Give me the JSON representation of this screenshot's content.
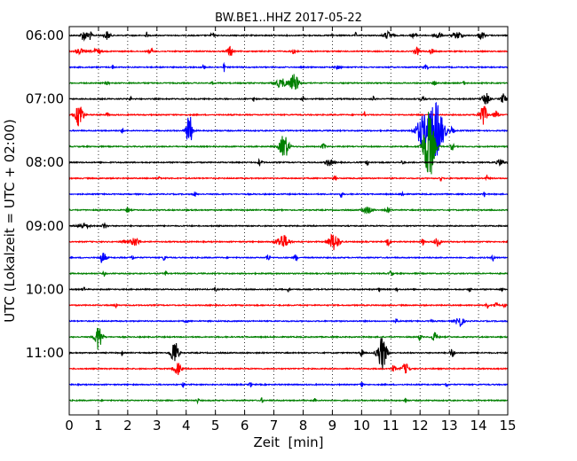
{
  "chart_data": {
    "type": "line",
    "title": "BW.BE1..HHZ 2017-05-22",
    "xlabel": "Zeit  [min]",
    "ylabel": "UTC (Lokalzeit = UTC + 02:00)",
    "xlim": [
      0,
      15
    ],
    "x_ticks": [
      "0",
      "1",
      "2",
      "3",
      "4",
      "5",
      "6",
      "7",
      "8",
      "9",
      "10",
      "11",
      "12",
      "13",
      "14",
      "15"
    ],
    "y_ticks": [
      "06:00",
      "07:00",
      "08:00",
      "09:00",
      "10:00",
      "11:00"
    ],
    "row_interval_min": 15,
    "grid": "vertical-dotted",
    "colors": [
      "#000000",
      "#ff0000",
      "#0000ff",
      "#008000"
    ],
    "rows": [
      {
        "start": "06:00",
        "bursts": [
          [
            0.5,
            6,
            0.1
          ],
          [
            0.7,
            5,
            0.08
          ],
          [
            1.3,
            5,
            0.1
          ],
          [
            2.65,
            4,
            0.03
          ],
          [
            4.9,
            3,
            0.06
          ],
          [
            9.0,
            3,
            0.03
          ],
          [
            9.8,
            3,
            0.03
          ],
          [
            10.9,
            4,
            0.15
          ],
          [
            11.8,
            3,
            0.08
          ],
          [
            12.6,
            4,
            0.12
          ],
          [
            13.3,
            4,
            0.15
          ],
          [
            14.1,
            4,
            0.1
          ]
        ]
      },
      {
        "start": "06:15",
        "bursts": [
          [
            0.35,
            3,
            0.15
          ],
          [
            0.95,
            3,
            0.15
          ],
          [
            2.8,
            3,
            0.08
          ],
          [
            5.5,
            6,
            0.1
          ],
          [
            7.7,
            3,
            0.1
          ],
          [
            11.9,
            4,
            0.1
          ],
          [
            12.4,
            3,
            0.08
          ]
        ]
      },
      {
        "start": "06:30",
        "bursts": [
          [
            1.5,
            2,
            0.05
          ],
          [
            4.6,
            6,
            0.03
          ],
          [
            5.3,
            5,
            0.03
          ],
          [
            9.2,
            2,
            0.1
          ],
          [
            12.2,
            3,
            0.08
          ]
        ]
      },
      {
        "start": "06:45",
        "bursts": [
          [
            1.3,
            2,
            0.06
          ],
          [
            4.9,
            4,
            0.03
          ],
          [
            7.25,
            5,
            0.2
          ],
          [
            7.7,
            10,
            0.15
          ],
          [
            12.5,
            3,
            0.06
          ],
          [
            13.5,
            2,
            0.04
          ]
        ]
      },
      {
        "start": "07:00",
        "bursts": [
          [
            2.1,
            2,
            0.04
          ],
          [
            6.3,
            3,
            0.03
          ],
          [
            8.0,
            3,
            0.03
          ],
          [
            10.4,
            3,
            0.05
          ],
          [
            12.1,
            3,
            0.08
          ],
          [
            14.25,
            7,
            0.12
          ],
          [
            14.85,
            6,
            0.08
          ]
        ]
      },
      {
        "start": "07:15",
        "bursts": [
          [
            0.35,
            15,
            0.12
          ],
          [
            1.3,
            3,
            0.04
          ],
          [
            10.1,
            4,
            0.03
          ],
          [
            14.15,
            13,
            0.12
          ],
          [
            14.6,
            5,
            0.08
          ]
        ]
      },
      {
        "start": "07:30",
        "bursts": [
          [
            1.8,
            3,
            0.05
          ],
          [
            4.1,
            20,
            0.1
          ],
          [
            12.1,
            18,
            0.22
          ],
          [
            12.55,
            32,
            0.25
          ],
          [
            13.1,
            4,
            0.06
          ]
        ]
      },
      {
        "start": "07:45",
        "bursts": [
          [
            7.35,
            14,
            0.15
          ],
          [
            8.7,
            3,
            0.08
          ],
          [
            12.3,
            40,
            0.18
          ],
          [
            13.1,
            4,
            0.06
          ]
        ]
      },
      {
        "start": "08:00",
        "bursts": [
          [
            6.5,
            4,
            0.04
          ],
          [
            6.6,
            3,
            0.03
          ],
          [
            8.9,
            4,
            0.12
          ],
          [
            10.2,
            3,
            0.05
          ],
          [
            11.4,
            3,
            0.04
          ],
          [
            14.75,
            4,
            0.12
          ]
        ]
      },
      {
        "start": "08:15",
        "bursts": [
          [
            3.1,
            3,
            0.04
          ],
          [
            9.1,
            3,
            0.04
          ],
          [
            12.7,
            3,
            0.04
          ],
          [
            14.3,
            4,
            0.04
          ]
        ]
      },
      {
        "start": "08:30",
        "bursts": [
          [
            4.3,
            3,
            0.05
          ],
          [
            9.3,
            4,
            0.04
          ],
          [
            11.4,
            3,
            0.05
          ],
          [
            14.2,
            3,
            0.04
          ]
        ]
      },
      {
        "start": "08:45",
        "bursts": [
          [
            2.0,
            4,
            0.05
          ],
          [
            10.2,
            4,
            0.15
          ],
          [
            10.9,
            3,
            0.08
          ]
        ]
      },
      {
        "start": "09:00",
        "bursts": [
          [
            0.5,
            3,
            0.18
          ],
          [
            1.2,
            3,
            0.08
          ]
        ]
      },
      {
        "start": "09:15",
        "bursts": [
          [
            1.85,
            3,
            0.05
          ],
          [
            2.25,
            5,
            0.15
          ],
          [
            7.3,
            8,
            0.2
          ],
          [
            9.05,
            10,
            0.18
          ],
          [
            10.9,
            5,
            0.05
          ],
          [
            12.1,
            4,
            0.05
          ],
          [
            12.6,
            5,
            0.1
          ]
        ]
      },
      {
        "start": "09:30",
        "bursts": [
          [
            1.15,
            7,
            0.1
          ],
          [
            2.15,
            3,
            0.05
          ],
          [
            3.25,
            3,
            0.05
          ],
          [
            6.8,
            4,
            0.06
          ],
          [
            7.75,
            4,
            0.05
          ],
          [
            14.5,
            4,
            0.05
          ]
        ]
      },
      {
        "start": "09:45",
        "bursts": [
          [
            1.2,
            3,
            0.04
          ],
          [
            3.3,
            3,
            0.04
          ],
          [
            11.0,
            3,
            0.06
          ]
        ]
      },
      {
        "start": "10:00",
        "bursts": [
          [
            0.5,
            3,
            0.03
          ],
          [
            5.0,
            3,
            0.03
          ],
          [
            7.5,
            3,
            0.03
          ],
          [
            10.6,
            3,
            0.03
          ],
          [
            11.2,
            3,
            0.03
          ],
          [
            13.7,
            3,
            0.03
          ],
          [
            14.8,
            3,
            0.03
          ]
        ]
      },
      {
        "start": "10:15",
        "bursts": [
          [
            1.6,
            4,
            0.03
          ],
          [
            14.3,
            5,
            0.04
          ],
          [
            14.6,
            3,
            0.08
          ],
          [
            14.9,
            3,
            0.04
          ]
        ]
      },
      {
        "start": "10:30",
        "bursts": [
          [
            4.0,
            2,
            0.05
          ],
          [
            11.2,
            3,
            0.05
          ],
          [
            12.4,
            2,
            0.04
          ],
          [
            13.35,
            7,
            0.12
          ]
        ]
      },
      {
        "start": "10:45",
        "bursts": [
          [
            1.0,
            15,
            0.12
          ],
          [
            12.0,
            4,
            0.05
          ],
          [
            12.5,
            5,
            0.1
          ]
        ]
      },
      {
        "start": "11:00",
        "bursts": [
          [
            1.8,
            3,
            0.03
          ],
          [
            3.6,
            15,
            0.12
          ],
          [
            10.0,
            5,
            0.05
          ],
          [
            10.7,
            20,
            0.15
          ],
          [
            13.1,
            5,
            0.08
          ]
        ]
      },
      {
        "start": "11:15",
        "bursts": [
          [
            3.7,
            7,
            0.12
          ],
          [
            11.5,
            6,
            0.12
          ],
          [
            11.1,
            4,
            0.06
          ]
        ]
      },
      {
        "start": "11:30",
        "bursts": [
          [
            3.9,
            3,
            0.04
          ],
          [
            6.2,
            3,
            0.04
          ],
          [
            10.0,
            4,
            0.04
          ],
          [
            12.9,
            3,
            0.04
          ]
        ]
      },
      {
        "start": "11:45",
        "bursts": [
          [
            4.4,
            3,
            0.04
          ],
          [
            6.6,
            3,
            0.04
          ],
          [
            8.4,
            3,
            0.04
          ],
          [
            11.5,
            3,
            0.04
          ]
        ]
      }
    ]
  }
}
